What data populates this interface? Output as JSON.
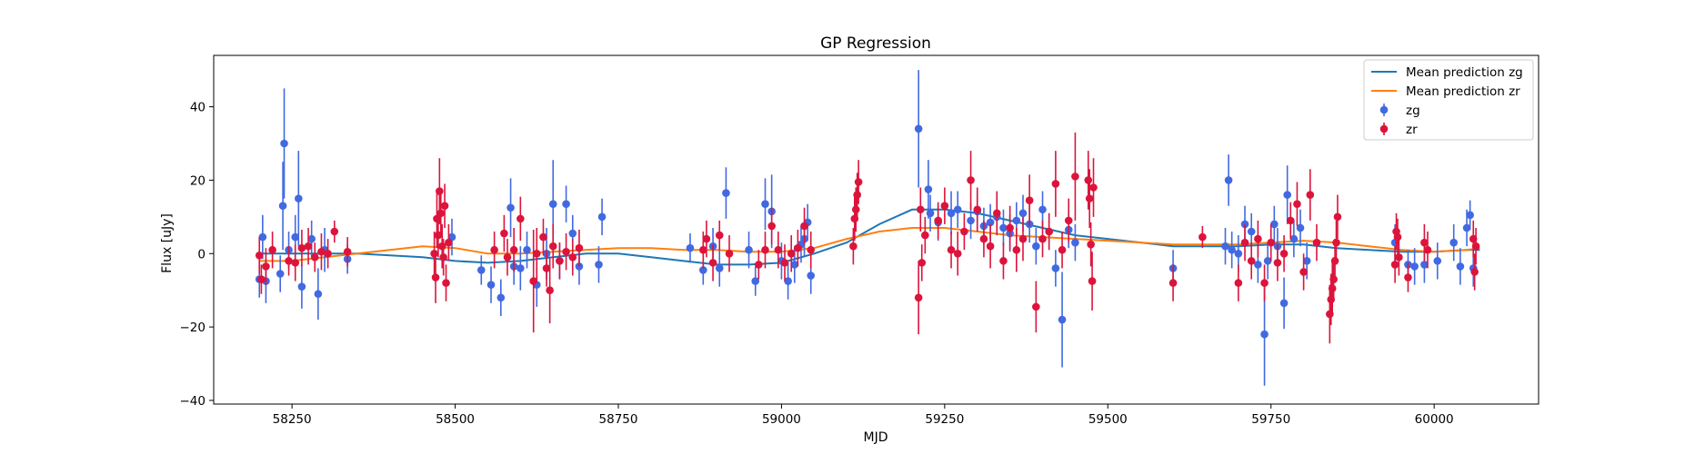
{
  "chart_data": {
    "type": "scatter",
    "title": "GP Regression",
    "xlabel": "MJD",
    "ylabel": "Flux [uJy]",
    "xlim": [
      58130,
      60160
    ],
    "ylim": [
      -41,
      54
    ],
    "xticks": [
      58250,
      58500,
      58750,
      59000,
      59250,
      59500,
      59750,
      60000
    ],
    "yticks": [
      -40,
      -20,
      0,
      20,
      40
    ],
    "grid": false,
    "legend_position": "top-right",
    "lines": [
      {
        "name": "Mean prediction zg",
        "color": "#1f77b4",
        "x": [
          58200,
          58250,
          58300,
          58350,
          58400,
          58450,
          58500,
          58550,
          58600,
          58650,
          58700,
          58750,
          58800,
          58850,
          58900,
          58950,
          59000,
          59050,
          59100,
          59150,
          59200,
          59250,
          59300,
          59350,
          59400,
          59450,
          59500,
          59550,
          59600,
          59650,
          59700,
          59750,
          59800,
          59850,
          59900,
          59950,
          60000,
          60050,
          60070
        ],
        "y": [
          0,
          0,
          0,
          0,
          -0.5,
          -1,
          -2,
          -2.5,
          -2,
          -1,
          0,
          0,
          -1,
          -2,
          -3,
          -3,
          -2.5,
          0,
          3,
          8,
          12,
          12,
          11,
          9,
          7,
          5,
          4,
          3,
          2,
          2,
          2,
          2.5,
          2.5,
          1.5,
          1,
          0.5,
          0.5,
          1,
          1
        ]
      },
      {
        "name": "Mean prediction zr",
        "color": "#ff7f0e",
        "x": [
          58200,
          58250,
          58300,
          58350,
          58400,
          58450,
          58500,
          58550,
          58600,
          58650,
          58700,
          58750,
          58800,
          58850,
          58900,
          58950,
          59000,
          59050,
          59100,
          59150,
          59200,
          59250,
          59300,
          59350,
          59400,
          59450,
          59500,
          59550,
          59600,
          59650,
          59700,
          59750,
          59800,
          59850,
          59900,
          59950,
          60000,
          60050,
          60070
        ],
        "y": [
          -2,
          -2,
          -1,
          0,
          1,
          2,
          1.5,
          0,
          0,
          0.5,
          1,
          1.5,
          1.5,
          1,
          1,
          0.5,
          0.5,
          1.5,
          4,
          6,
          7,
          7,
          6,
          5,
          4.5,
          4,
          3.5,
          3,
          2.5,
          2.5,
          2.5,
          3,
          3.5,
          3,
          2,
          1,
          0.5,
          1,
          1.5
        ]
      }
    ],
    "series": [
      {
        "name": "zg",
        "color": "#4169e1",
        "points": [
          [
            58200,
            -7,
            5
          ],
          [
            58205,
            4.5,
            6
          ],
          [
            58210,
            -7.5,
            6
          ],
          [
            58232,
            -5.5,
            5
          ],
          [
            58236,
            13,
            12
          ],
          [
            58238,
            30,
            15
          ],
          [
            58245,
            1,
            5
          ],
          [
            58255,
            4.5,
            6
          ],
          [
            58260,
            15,
            13
          ],
          [
            58265,
            -9,
            6
          ],
          [
            58280,
            4,
            5
          ],
          [
            58290,
            -11,
            7
          ],
          [
            58300,
            1,
            6
          ],
          [
            58335,
            -1.5,
            4
          ],
          [
            58495,
            4.5,
            5
          ],
          [
            58540,
            -4.5,
            4
          ],
          [
            58555,
            -8.5,
            5
          ],
          [
            58570,
            -12,
            5
          ],
          [
            58585,
            12.5,
            8
          ],
          [
            58590,
            -3.5,
            5
          ],
          [
            58600,
            -4,
            6
          ],
          [
            58610,
            1,
            5
          ],
          [
            58625,
            -8.5,
            6
          ],
          [
            58640,
            0,
            7
          ],
          [
            58650,
            13.5,
            12
          ],
          [
            58660,
            -2,
            5
          ],
          [
            58670,
            13.5,
            5
          ],
          [
            58680,
            5.5,
            5
          ],
          [
            58690,
            -3.5,
            5
          ],
          [
            58720,
            -3,
            5
          ],
          [
            58725,
            10,
            5
          ],
          [
            58860,
            1.5,
            4
          ],
          [
            58880,
            -4.5,
            4
          ],
          [
            58895,
            2,
            5
          ],
          [
            58905,
            -4,
            5
          ],
          [
            58915,
            16.5,
            7
          ],
          [
            58950,
            1,
            5
          ],
          [
            58960,
            -7.5,
            4
          ],
          [
            58975,
            13.5,
            7
          ],
          [
            58985,
            11.5,
            10
          ],
          [
            59000,
            -2,
            5
          ],
          [
            59010,
            -7.5,
            5
          ],
          [
            59020,
            -3,
            5
          ],
          [
            59030,
            2.5,
            5
          ],
          [
            59035,
            4,
            5
          ],
          [
            59040,
            8.5,
            5
          ],
          [
            59045,
            -6,
            5
          ],
          [
            59210,
            34,
            16
          ],
          [
            59225,
            17.5,
            8
          ],
          [
            59228,
            11,
            5
          ],
          [
            59240,
            8.5,
            5
          ],
          [
            59260,
            11,
            6
          ],
          [
            59270,
            12,
            5
          ],
          [
            59290,
            9,
            5
          ],
          [
            59300,
            11.5,
            5
          ],
          [
            59310,
            7.5,
            5
          ],
          [
            59320,
            8.5,
            5
          ],
          [
            59330,
            10,
            5
          ],
          [
            59340,
            7,
            5
          ],
          [
            59350,
            5.5,
            5
          ],
          [
            59360,
            9,
            5
          ],
          [
            59370,
            11,
            5
          ],
          [
            59380,
            8,
            5
          ],
          [
            59390,
            2,
            5
          ],
          [
            59400,
            12,
            5
          ],
          [
            59410,
            6,
            5
          ],
          [
            59420,
            -4,
            5
          ],
          [
            59430,
            -18,
            13
          ],
          [
            59440,
            6.5,
            5
          ],
          [
            59450,
            3,
            5
          ],
          [
            59600,
            -4,
            5
          ],
          [
            59680,
            2,
            5
          ],
          [
            59685,
            20,
            7
          ],
          [
            59690,
            1,
            5
          ],
          [
            59700,
            0,
            5
          ],
          [
            59710,
            8,
            5
          ],
          [
            59720,
            6,
            5
          ],
          [
            59730,
            -3,
            5
          ],
          [
            59740,
            -22,
            14
          ],
          [
            59745,
            -2,
            5
          ],
          [
            59755,
            8,
            5
          ],
          [
            59760,
            2,
            5
          ],
          [
            59770,
            -13.5,
            7
          ],
          [
            59775,
            16,
            8
          ],
          [
            59785,
            4,
            5
          ],
          [
            59795,
            7,
            5
          ],
          [
            59805,
            -2,
            5
          ],
          [
            59940,
            3,
            5
          ],
          [
            59960,
            -3,
            4
          ],
          [
            59970,
            -3.5,
            5
          ],
          [
            59985,
            -3,
            5
          ],
          [
            60005,
            -2,
            5
          ],
          [
            60030,
            3,
            5
          ],
          [
            60040,
            -3.5,
            5
          ],
          [
            60050,
            7,
            5
          ],
          [
            60055,
            10.5,
            4
          ],
          [
            60060,
            -4,
            5
          ]
        ]
      },
      {
        "name": "zr",
        "color": "#dc143c",
        "points": [
          [
            58200,
            -0.5,
            5
          ],
          [
            58203,
            -7,
            4
          ],
          [
            58210,
            -3.5,
            5
          ],
          [
            58220,
            1,
            5
          ],
          [
            58245,
            -2,
            4
          ],
          [
            58255,
            -2.5,
            5
          ],
          [
            58265,
            1.5,
            5
          ],
          [
            58275,
            2,
            5
          ],
          [
            58285,
            -1,
            4
          ],
          [
            58295,
            0.5,
            5
          ],
          [
            58305,
            0,
            4
          ],
          [
            58315,
            6,
            3
          ],
          [
            58335,
            0.5,
            4
          ],
          [
            58468,
            0,
            6
          ],
          [
            58470,
            -6.5,
            7
          ],
          [
            58472,
            9.5,
            8
          ],
          [
            58474,
            5,
            6
          ],
          [
            58476,
            17,
            9
          ],
          [
            58478,
            11,
            6
          ],
          [
            58480,
            2,
            6
          ],
          [
            58482,
            -1,
            5
          ],
          [
            58484,
            13,
            6
          ],
          [
            58486,
            -8,
            5
          ],
          [
            58490,
            3,
            5
          ],
          [
            58560,
            1,
            5
          ],
          [
            58575,
            5.5,
            5
          ],
          [
            58580,
            -1,
            5
          ],
          [
            58590,
            1,
            6
          ],
          [
            58600,
            9.5,
            6
          ],
          [
            58620,
            -7.5,
            14
          ],
          [
            58625,
            0,
            7
          ],
          [
            58635,
            4.5,
            5
          ],
          [
            58640,
            -4,
            5
          ],
          [
            58645,
            -10,
            9
          ],
          [
            58650,
            2,
            6
          ],
          [
            58660,
            -2,
            5
          ],
          [
            58670,
            0.5,
            5
          ],
          [
            58680,
            -1,
            5
          ],
          [
            58690,
            1.5,
            5
          ],
          [
            58880,
            1,
            5
          ],
          [
            58885,
            4,
            5
          ],
          [
            58895,
            -2.5,
            5
          ],
          [
            58905,
            5,
            4
          ],
          [
            58920,
            0,
            5
          ],
          [
            58965,
            -3,
            4
          ],
          [
            58975,
            1,
            5
          ],
          [
            58985,
            7.5,
            5
          ],
          [
            58995,
            1,
            5
          ],
          [
            59005,
            -2.5,
            5
          ],
          [
            59015,
            0,
            5
          ],
          [
            59025,
            1.5,
            5
          ],
          [
            59035,
            7.5,
            5
          ],
          [
            59045,
            1,
            5
          ],
          [
            59110,
            2,
            5
          ],
          [
            59112,
            9.5,
            6
          ],
          [
            59114,
            12,
            6
          ],
          [
            59116,
            16,
            6
          ],
          [
            59118,
            19.5,
            6
          ],
          [
            59210,
            -12,
            10
          ],
          [
            59213,
            12,
            6
          ],
          [
            59215,
            -2.5,
            5
          ],
          [
            59220,
            5,
            5
          ],
          [
            59240,
            9,
            5
          ],
          [
            59250,
            13,
            5
          ],
          [
            59260,
            1,
            5
          ],
          [
            59270,
            0,
            6
          ],
          [
            59280,
            6,
            5
          ],
          [
            59290,
            20,
            8
          ],
          [
            59300,
            12,
            6
          ],
          [
            59310,
            4,
            5
          ],
          [
            59320,
            2,
            6
          ],
          [
            59330,
            11,
            6
          ],
          [
            59340,
            -2,
            5
          ],
          [
            59350,
            7,
            6
          ],
          [
            59360,
            1,
            6
          ],
          [
            59370,
            4,
            6
          ],
          [
            59380,
            14.5,
            7
          ],
          [
            59390,
            -14.5,
            7
          ],
          [
            59400,
            4,
            5
          ],
          [
            59410,
            6,
            5
          ],
          [
            59420,
            19,
            9
          ],
          [
            59430,
            1,
            5
          ],
          [
            59440,
            9,
            6
          ],
          [
            59450,
            21,
            12
          ],
          [
            59470,
            20,
            8
          ],
          [
            59472,
            15,
            8
          ],
          [
            59474,
            2.5,
            6
          ],
          [
            59476,
            -7.5,
            8
          ],
          [
            59478,
            18,
            8
          ],
          [
            59600,
            -8,
            5
          ],
          [
            59645,
            4.5,
            3
          ],
          [
            59700,
            -8,
            5
          ],
          [
            59710,
            3,
            5
          ],
          [
            59720,
            -2,
            5
          ],
          [
            59730,
            4,
            5
          ],
          [
            59740,
            -8,
            5
          ],
          [
            59750,
            3,
            5
          ],
          [
            59760,
            -2.5,
            5
          ],
          [
            59770,
            0,
            5
          ],
          [
            59780,
            9,
            5
          ],
          [
            59790,
            13.5,
            6
          ],
          [
            59800,
            -5,
            5
          ],
          [
            59810,
            16,
            7
          ],
          [
            59820,
            3,
            5
          ],
          [
            59840,
            -16.5,
            8
          ],
          [
            59842,
            -12.5,
            7
          ],
          [
            59844,
            -9.5,
            7
          ],
          [
            59846,
            -7,
            6
          ],
          [
            59848,
            -2,
            6
          ],
          [
            59850,
            3,
            6
          ],
          [
            59852,
            10,
            6
          ],
          [
            59940,
            -3,
            5
          ],
          [
            59942,
            6,
            5
          ],
          [
            59944,
            4.5,
            5
          ],
          [
            59946,
            -1,
            5
          ],
          [
            59960,
            -6.5,
            4
          ],
          [
            59985,
            3,
            5
          ],
          [
            59990,
            1,
            5
          ],
          [
            60060,
            4,
            5
          ],
          [
            60062,
            -5,
            5
          ],
          [
            60064,
            2,
            5
          ]
        ]
      }
    ]
  }
}
